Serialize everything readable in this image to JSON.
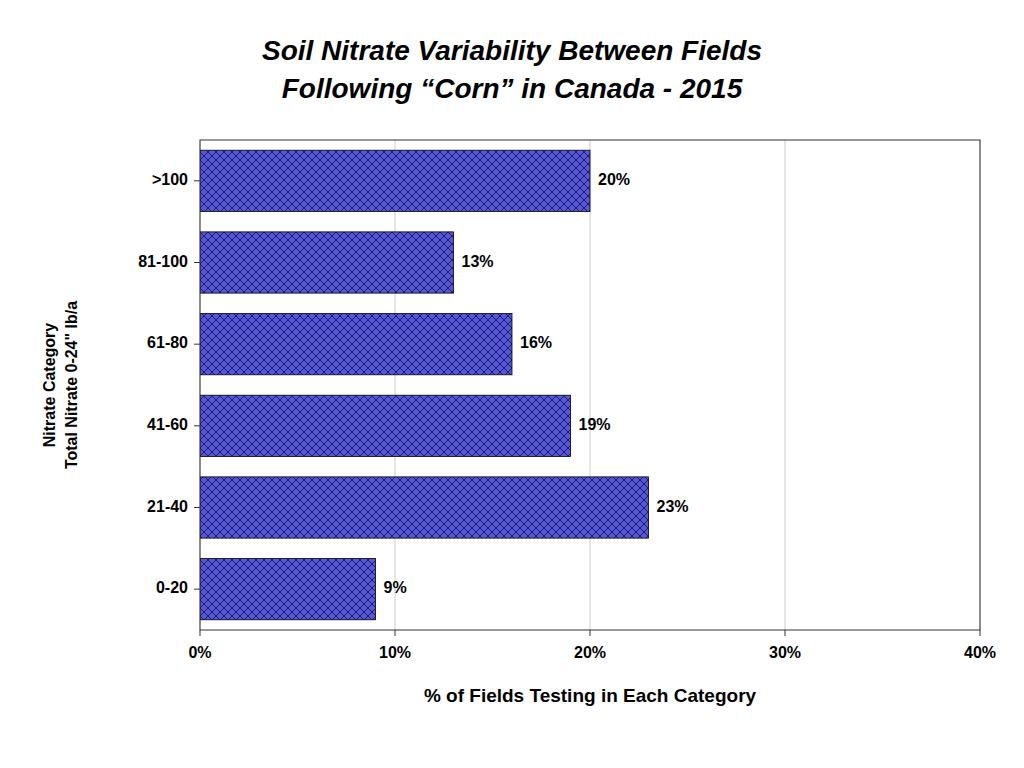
{
  "chart_data": {
    "type": "bar",
    "orientation": "horizontal",
    "title": "Soil Nitrate Variability Between Fields\nFollowing “Corn” in Canada - 2015",
    "categories": [
      "0-20",
      "21-40",
      "41-60",
      "61-80",
      "81-100",
      ">100"
    ],
    "values": [
      9,
      23,
      19,
      16,
      13,
      20
    ],
    "value_labels": [
      "9%",
      "23%",
      "19%",
      "16%",
      "13%",
      "20%"
    ],
    "data_labels": true,
    "color": "#5555dd",
    "xlabel": "% of Fields Testing in Each Category",
    "ylabel": "Nitrate Category\nTotal Nitrate 0-24\" lb/a",
    "xlim": [
      0,
      40
    ],
    "xticks": [
      {
        "value": 0,
        "label": "0%"
      },
      {
        "value": 10,
        "label": "10%"
      },
      {
        "value": 20,
        "label": "20%"
      },
      {
        "value": 30,
        "label": "30%"
      },
      {
        "value": 40,
        "label": "40%"
      }
    ],
    "grid": true
  }
}
